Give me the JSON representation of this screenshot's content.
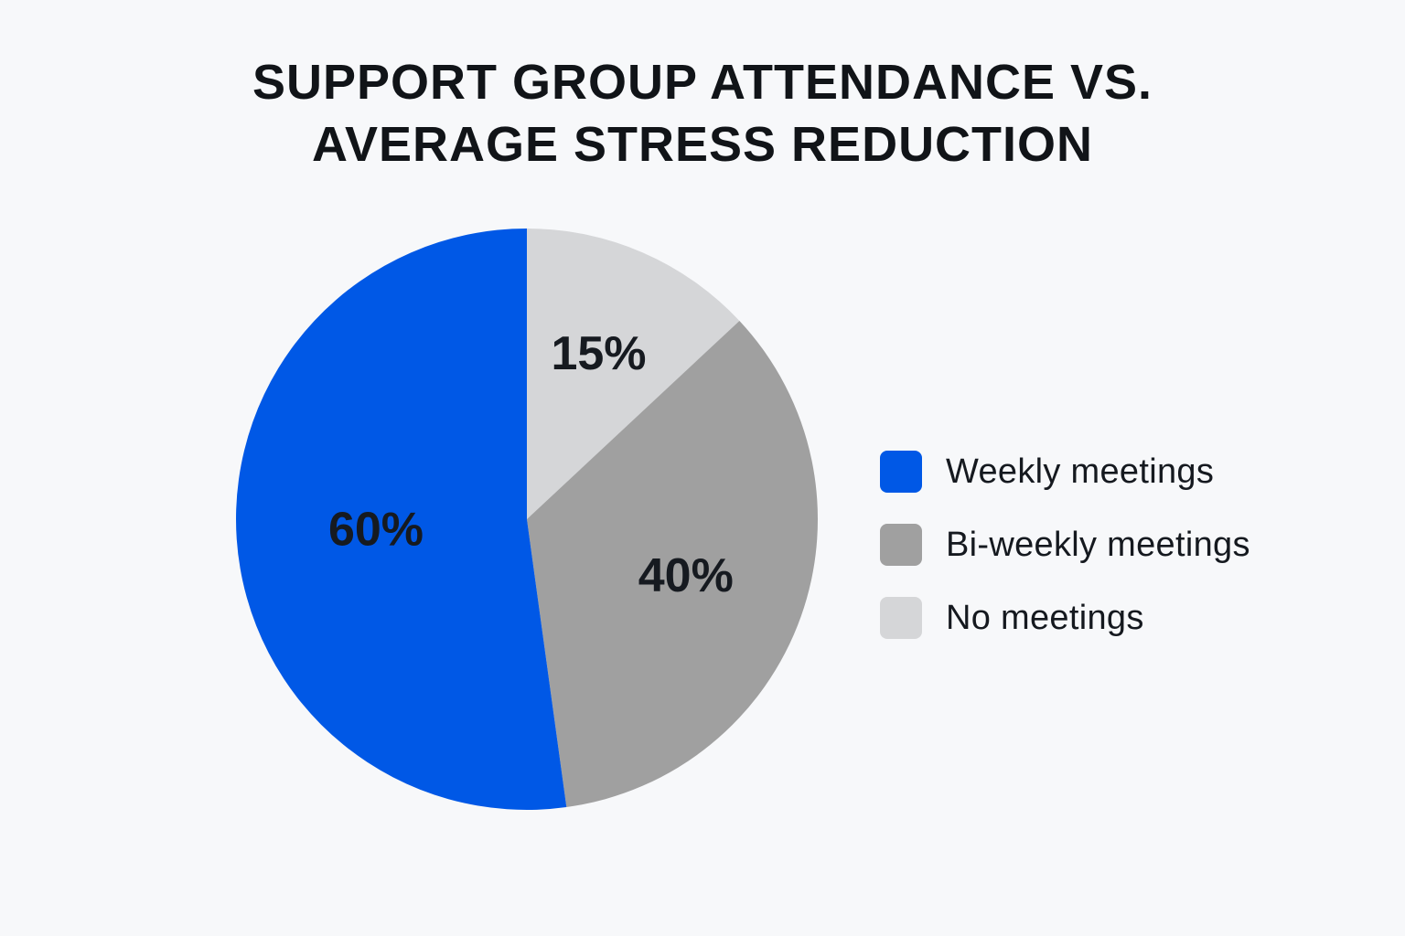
{
  "chart_data": {
    "type": "pie",
    "title_lines": [
      "SUPPORT GROUP ATTENDANCE VS.",
      "AVERAGE STRESS REDUCTION"
    ],
    "slices": [
      {
        "name": "Weekly meetings",
        "value": 60,
        "label": "60%",
        "color": "#0058e6"
      },
      {
        "name": "Bi-weekly meetings",
        "value": 40,
        "label": "40%",
        "color": "#a0a0a0"
      },
      {
        "name": "No meetings",
        "value": 15,
        "label": "15%",
        "color": "#d5d6d8"
      }
    ],
    "legend_position": "right"
  }
}
